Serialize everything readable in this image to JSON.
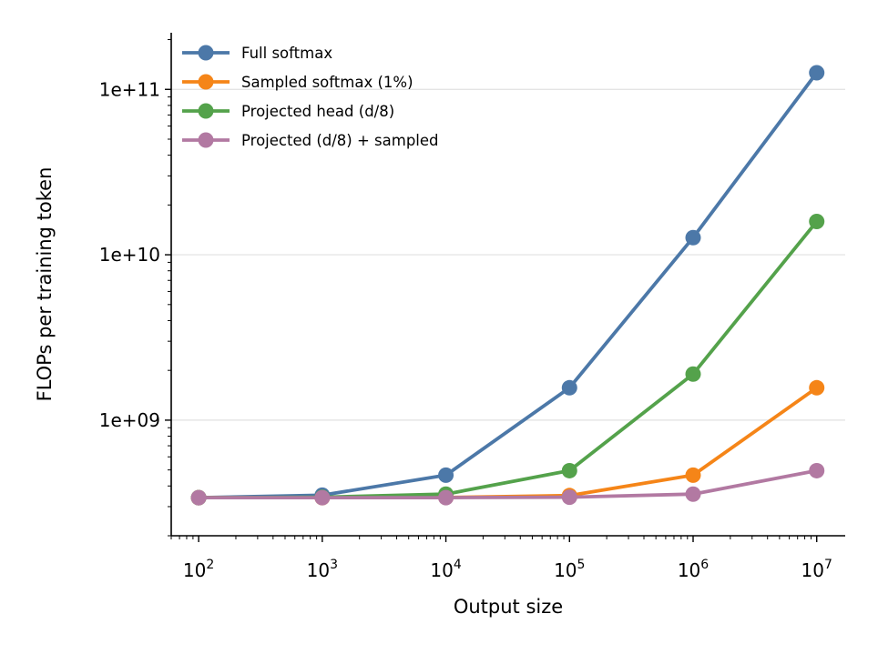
{
  "chart_data": {
    "type": "line",
    "xlabel": "Output size",
    "ylabel": "FLOPs per training token",
    "x_scale": "log",
    "y_scale": "log",
    "x": [
      100,
      1000,
      10000,
      100000,
      1000000,
      10000000
    ],
    "x_tick_labels": [
      {
        "base": "10",
        "exp": "2"
      },
      {
        "base": "10",
        "exp": "3"
      },
      {
        "base": "10",
        "exp": "4"
      },
      {
        "base": "10",
        "exp": "5"
      },
      {
        "base": "10",
        "exp": "6"
      },
      {
        "base": "10",
        "exp": "7"
      }
    ],
    "xlim": [
      60,
      17000000
    ],
    "ylim": [
      200000000,
      220000000000
    ],
    "y_ticks": [
      1000000000,
      10000000000,
      100000000000
    ],
    "y_tick_labels": [
      "1e+09",
      "1e+10",
      "1e+11"
    ],
    "grid": "horizontal major lines",
    "legend_position": "top-left",
    "series": [
      {
        "name": "Full softmax",
        "color": "#4c78a8",
        "values": [
          340000000,
          352000000,
          465000000,
          1570000000,
          12700000000,
          126000000000
        ]
      },
      {
        "name": "Sampled softmax (1%)",
        "color": "#f58518",
        "values": [
          340000000,
          340000000,
          341000000,
          350000000,
          465000000,
          1570000000
        ]
      },
      {
        "name": "Projected head (d/8)",
        "color": "#54a24b",
        "values": [
          340000000,
          342000000,
          357000000,
          495000000,
          1900000000,
          15900000000
        ]
      },
      {
        "name": "Projected (d/8) + sampled",
        "color": "#b279a2",
        "values": [
          340000000,
          340000000,
          340000000,
          342000000,
          357000000,
          495000000
        ]
      }
    ]
  }
}
